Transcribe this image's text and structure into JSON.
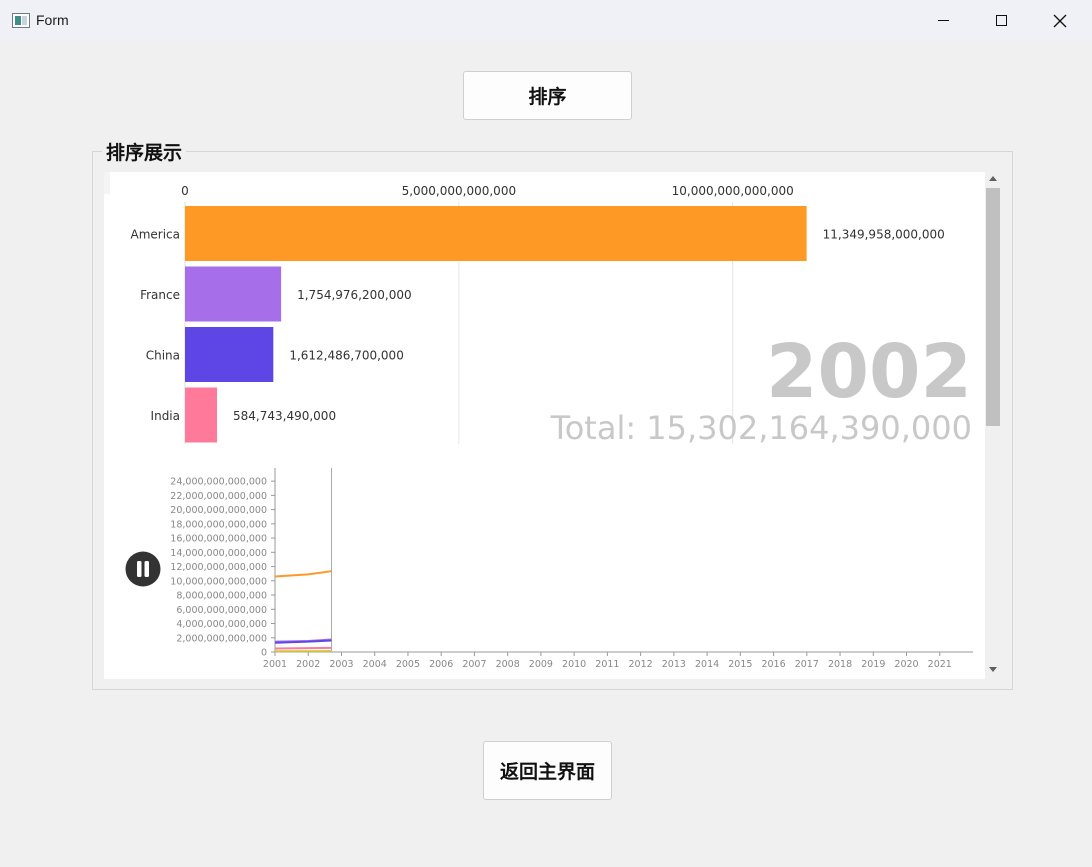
{
  "window": {
    "title": "Form",
    "icon": "window-app-icon",
    "controls": [
      "minimize-icon",
      "maximize-icon",
      "close-icon"
    ]
  },
  "buttons": {
    "sort_label": "排序",
    "back_label": "返回主界面"
  },
  "groupbox": {
    "title": "排序展示"
  },
  "chart_data": [
    {
      "type": "bar",
      "orientation": "horizontal",
      "categories": [
        "America",
        "France",
        "China",
        "India"
      ],
      "values": [
        11349958000000,
        1754976200000,
        1612486700000,
        584743490000
      ],
      "value_labels": [
        "11,349,958,000,000",
        "1,754,976,200,000",
        "1,612,486,700,000",
        "584,743,490,000"
      ],
      "colors": [
        "#ff9925",
        "#a66ee8",
        "#5e46e6",
        "#ff7a9a"
      ],
      "x_ticks": [
        0,
        5000000000000,
        10000000000000
      ],
      "x_tick_labels": [
        "0",
        "5,000,000,000,000",
        "10,000,000,000,000"
      ],
      "xlim": [
        0,
        13000000000000
      ],
      "grid": true,
      "year_label": "2002",
      "total_label": "Total: 15,302,164,390,000"
    },
    {
      "type": "line",
      "x": [
        2001,
        2002,
        2002.7
      ],
      "x_tick_labels": [
        "2001",
        "2002",
        "2003",
        "2004",
        "2005",
        "2006",
        "2007",
        "2008",
        "2009",
        "2010",
        "2011",
        "2012",
        "2013",
        "2014",
        "2015",
        "2016",
        "2017",
        "2018",
        "2019",
        "2020",
        "2021"
      ],
      "xlim": [
        2001,
        2022
      ],
      "ylim": [
        0,
        25000000000000
      ],
      "y_tick_labels": [
        "0",
        "2,000,000,000,000",
        "4,000,000,000,000",
        "6,000,000,000,000",
        "8,000,000,000,000",
        "10,000,000,000,000",
        "12,000,000,000,000",
        "14,000,000,000,000",
        "16,000,000,000,000",
        "18,000,000,000,000",
        "20,000,000,000,000",
        "22,000,000,000,000",
        "24,000,000,000,000"
      ],
      "current_x": 2002.7,
      "series": [
        {
          "color": "#ff9925",
          "values": [
            10600000000000,
            10900000000000,
            11349958000000
          ]
        },
        {
          "color": "#a66ee8",
          "values": [
            1450000000000,
            1550000000000,
            1754976200000
          ]
        },
        {
          "color": "#5e46e6",
          "values": [
            1300000000000,
            1450000000000,
            1612486700000
          ]
        },
        {
          "color": "#ff7a9a",
          "values": [
            500000000000,
            540000000000,
            584743490000
          ]
        },
        {
          "color": "#d4c23a",
          "values": [
            100000000000,
            110000000000,
            120000000000
          ]
        }
      ],
      "play_control": "pause-icon"
    }
  ]
}
